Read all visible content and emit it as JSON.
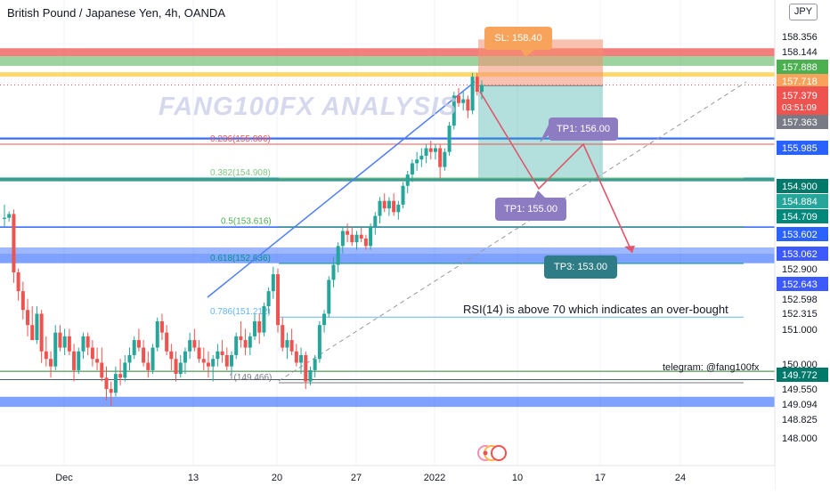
{
  "header": {
    "title": "British Pound / Japanese Yen, 4h, OANDA",
    "currency": "JPY"
  },
  "watermark": "FANG100FX ANALYSIS",
  "annotations": {
    "sl": "SL: 158.40",
    "tp1_upper": "TP1: 156.00",
    "tp1_lower": "TP1: 155.00",
    "tp3": "TP3: 153.00",
    "rsi_note": "RSI(14) is above 70 which indicates an over-bought",
    "telegram": "telegram: @fang100fx"
  },
  "colors": {
    "bull": "#26a69a",
    "bear": "#ef5350",
    "blue_line": "#2962ff",
    "sl_box": "#f7a35c",
    "tp_box": "#8e7cc3",
    "tp3_box": "#2e7d86"
  },
  "chart_data": {
    "type": "candlestick",
    "title": "British Pound / Japanese Yen, 4h, OANDA",
    "y_axis": {
      "ylim": [
        147.8,
        159.2
      ],
      "tick_labels": [
        "158.356",
        "158.144",
        "157.888",
        "157.718",
        "157.379",
        "157.363",
        "155.985",
        "154.900",
        "154.884",
        "154.709",
        "153.602",
        "153.062",
        "152.900",
        "152.643",
        "152.598",
        "152.315",
        "151.000",
        "150.000",
        "149.772",
        "149.550",
        "149.094",
        "148.825",
        "148.000"
      ],
      "current_price": "157.379",
      "countdown": "03:51:09"
    },
    "x_axis": {
      "tick_labels": [
        "Dec",
        "13",
        "20",
        "27",
        "2022",
        "10",
        "17",
        "24"
      ]
    },
    "fibonacci": [
      {
        "label": "0.236(155.806)",
        "level": 155.806
      },
      {
        "label": "0.382(154.908)",
        "level": 154.908
      },
      {
        "label": "0.5(153.616)",
        "level": 153.616
      },
      {
        "label": "0.618(152.636)",
        "level": 152.636
      },
      {
        "label": "0.786(151.212)",
        "level": 151.212
      },
      {
        "label": "1(149.466)",
        "level": 149.466
      }
    ],
    "horizontal_levels": [
      158.356,
      158.144,
      157.888,
      157.718,
      155.985,
      154.9,
      153.602,
      153.062,
      152.9,
      152.643,
      149.772,
      149.55,
      149.094,
      148.825
    ],
    "trade": {
      "entry": 157.363,
      "stop_loss": 158.4,
      "targets": [
        156.0,
        155.0,
        153.0
      ]
    },
    "series": [
      {
        "name": "GBPJPY",
        "candles": [
          [
            153.82,
            154.2,
            153.6,
            153.85
          ],
          [
            153.85,
            154.02,
            153.75,
            153.95
          ],
          [
            153.95,
            154.07,
            152.12,
            152.4
          ],
          [
            152.4,
            152.5,
            151.65,
            151.9
          ],
          [
            151.9,
            152.15,
            151.15,
            151.4
          ],
          [
            151.4,
            151.7,
            150.7,
            151.0
          ],
          [
            151.0,
            151.5,
            150.6,
            150.6
          ],
          [
            150.6,
            151.5,
            150.5,
            151.3
          ],
          [
            151.3,
            151.4,
            150.0,
            150.3
          ],
          [
            150.3,
            150.7,
            149.9,
            150.1
          ],
          [
            150.1,
            150.3,
            149.6,
            149.9
          ],
          [
            149.9,
            151.0,
            149.8,
            150.8
          ],
          [
            150.8,
            151.0,
            150.3,
            150.4
          ],
          [
            150.4,
            150.9,
            150.2,
            150.7
          ],
          [
            150.7,
            150.9,
            150.2,
            150.3
          ],
          [
            150.3,
            150.5,
            149.5,
            149.8
          ],
          [
            149.8,
            150.4,
            149.7,
            150.3
          ],
          [
            150.3,
            150.8,
            150.1,
            150.7
          ],
          [
            150.7,
            150.8,
            150.2,
            150.4
          ],
          [
            150.4,
            150.6,
            149.9,
            150.1
          ],
          [
            150.1,
            150.4,
            149.8,
            150.0
          ],
          [
            150.0,
            150.4,
            149.5,
            149.6
          ],
          [
            149.6,
            149.9,
            149.0,
            149.3
          ],
          [
            149.3,
            149.5,
            148.85,
            149.2
          ],
          [
            149.2,
            149.9,
            149.1,
            149.7
          ],
          [
            149.7,
            150.1,
            149.4,
            149.6
          ],
          [
            149.6,
            150.2,
            149.5,
            150.0
          ],
          [
            150.0,
            150.4,
            149.8,
            150.2
          ],
          [
            150.2,
            150.7,
            150.1,
            150.6
          ],
          [
            150.6,
            150.9,
            150.3,
            150.4
          ],
          [
            150.4,
            150.6,
            149.9,
            150.0
          ],
          [
            150.0,
            150.3,
            149.6,
            149.8
          ],
          [
            149.8,
            150.5,
            149.7,
            150.4
          ],
          [
            150.4,
            151.2,
            150.3,
            151.1
          ],
          [
            151.1,
            151.3,
            150.6,
            150.8
          ],
          [
            150.8,
            151.0,
            150.2,
            150.3
          ],
          [
            150.3,
            150.5,
            149.8,
            150.1
          ],
          [
            150.1,
            150.3,
            149.5,
            149.7
          ],
          [
            149.7,
            150.2,
            149.6,
            150.0
          ],
          [
            150.0,
            150.4,
            149.7,
            150.3
          ],
          [
            150.3,
            150.8,
            150.1,
            150.6
          ],
          [
            150.6,
            150.9,
            150.3,
            150.4
          ],
          [
            150.4,
            150.6,
            150.0,
            150.1
          ],
          [
            150.1,
            150.4,
            149.8,
            150.0
          ],
          [
            150.0,
            150.3,
            149.6,
            149.9
          ],
          [
            149.9,
            150.2,
            149.5,
            150.1
          ],
          [
            150.1,
            150.5,
            149.9,
            150.3
          ],
          [
            150.3,
            150.6,
            150.0,
            150.2
          ],
          [
            150.2,
            150.4,
            149.8,
            149.9
          ],
          [
            149.9,
            150.3,
            149.7,
            150.2
          ],
          [
            150.2,
            150.8,
            150.1,
            150.7
          ],
          [
            150.7,
            151.1,
            150.4,
            150.6
          ],
          [
            150.6,
            150.9,
            150.2,
            150.4
          ],
          [
            150.4,
            150.8,
            150.2,
            150.7
          ],
          [
            150.7,
            151.3,
            150.6,
            151.1
          ],
          [
            151.1,
            151.3,
            150.5,
            150.8
          ],
          [
            150.8,
            151.6,
            150.7,
            151.5
          ],
          [
            151.5,
            152.0,
            151.3,
            151.9
          ],
          [
            151.9,
            152.55,
            151.7,
            152.35
          ],
          [
            152.35,
            152.5,
            150.8,
            151.0
          ],
          [
            151.0,
            151.2,
            150.3,
            150.4
          ],
          [
            150.4,
            150.8,
            150.1,
            150.6
          ],
          [
            150.6,
            150.9,
            150.2,
            150.3
          ],
          [
            150.3,
            150.5,
            149.9,
            150.0
          ],
          [
            150.0,
            150.4,
            149.7,
            150.2
          ],
          [
            150.2,
            150.3,
            149.3,
            149.5
          ],
          [
            149.5,
            149.9,
            149.4,
            149.8
          ],
          [
            149.8,
            150.2,
            149.6,
            150.1
          ],
          [
            150.1,
            151.1,
            150.0,
            151.0
          ],
          [
            151.0,
            151.4,
            150.8,
            151.3
          ],
          [
            151.3,
            152.3,
            151.2,
            152.2
          ],
          [
            152.2,
            152.8,
            152.0,
            152.6
          ],
          [
            152.6,
            153.2,
            152.4,
            153.1
          ],
          [
            153.1,
            153.6,
            152.9,
            153.5
          ],
          [
            153.5,
            153.7,
            153.2,
            153.4
          ],
          [
            153.4,
            153.6,
            153.1,
            153.2
          ],
          [
            153.2,
            153.5,
            153.0,
            153.4
          ],
          [
            153.4,
            153.6,
            153.2,
            153.3
          ],
          [
            153.3,
            153.4,
            153.0,
            153.1
          ],
          [
            153.1,
            153.7,
            153.0,
            153.6
          ],
          [
            153.6,
            154.0,
            153.4,
            153.9
          ],
          [
            153.9,
            154.4,
            153.7,
            154.3
          ],
          [
            154.3,
            154.5,
            154.0,
            154.1
          ],
          [
            154.1,
            154.4,
            153.9,
            154.3
          ],
          [
            154.3,
            154.5,
            153.9,
            154.0
          ],
          [
            154.0,
            154.3,
            153.8,
            154.2
          ],
          [
            154.2,
            154.8,
            154.1,
            154.7
          ],
          [
            154.7,
            155.1,
            154.5,
            155.0
          ],
          [
            155.0,
            155.4,
            154.8,
            155.3
          ],
          [
            155.3,
            155.6,
            155.1,
            155.4
          ],
          [
            155.4,
            155.7,
            155.2,
            155.5
          ],
          [
            155.5,
            155.8,
            155.3,
            155.7
          ],
          [
            155.7,
            155.9,
            155.4,
            155.6
          ],
          [
            155.6,
            155.8,
            155.4,
            155.7
          ],
          [
            155.7,
            155.8,
            154.9,
            155.2
          ],
          [
            155.2,
            155.7,
            155.1,
            155.6
          ],
          [
            155.6,
            156.4,
            155.5,
            156.3
          ],
          [
            156.3,
            157.2,
            156.2,
            157.1
          ],
          [
            157.1,
            157.3,
            156.8,
            156.9
          ],
          [
            156.9,
            157.2,
            156.7,
            157.0
          ],
          [
            157.0,
            157.1,
            156.5,
            156.7
          ],
          [
            156.7,
            157.7,
            156.6,
            157.6
          ],
          [
            157.6,
            157.7,
            157.1,
            157.2
          ],
          [
            157.2,
            157.5,
            157.0,
            157.38
          ]
        ]
      }
    ]
  }
}
